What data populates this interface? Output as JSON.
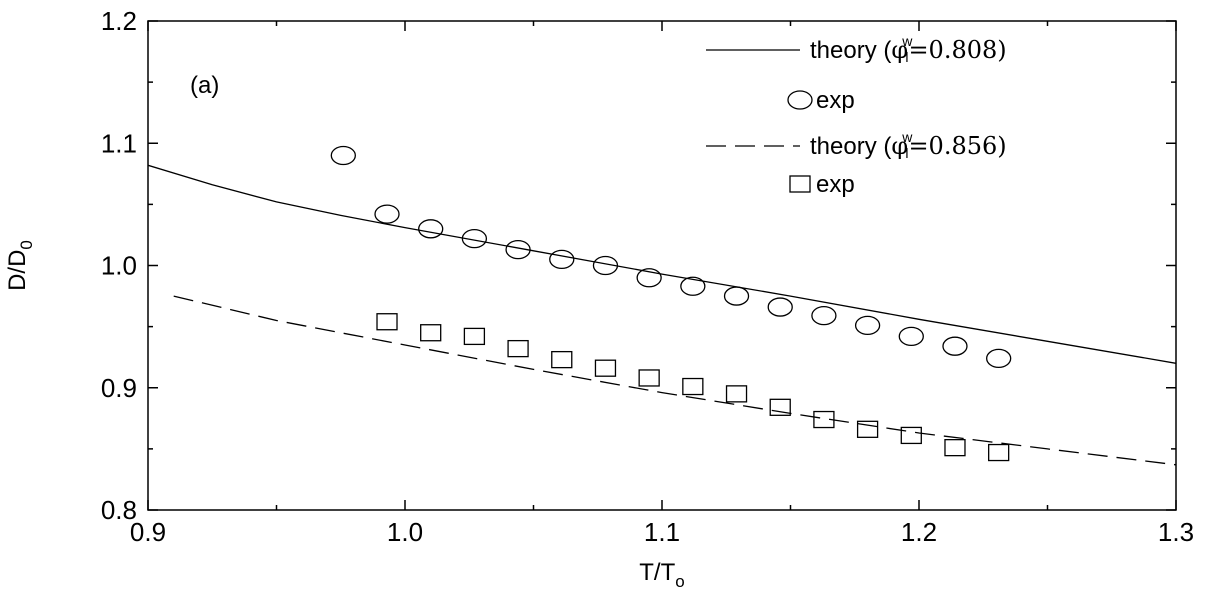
{
  "chart_data": {
    "type": "line",
    "panel_label": "(a)",
    "xlabel": {
      "main": "T/T",
      "sub": "o"
    },
    "ylabel": {
      "main": "D/D",
      "sub": "0"
    },
    "xlim": [
      0.9,
      1.3
    ],
    "ylim": [
      0.8,
      1.2
    ],
    "x_ticks": [
      0.9,
      1.0,
      1.1,
      1.2,
      1.3
    ],
    "x_tick_labels": [
      "0.9",
      "1.0",
      "1.1",
      "1.2",
      "1.3"
    ],
    "y_ticks": [
      0.8,
      0.9,
      1.0,
      1.1,
      1.2
    ],
    "y_tick_labels": [
      "0.8",
      "0.9",
      "1.0",
      "1.1",
      "1.2"
    ],
    "grid": false,
    "legend_position": "top-right",
    "series": [
      {
        "kind": "line",
        "style": "solid",
        "legend": {
          "prefix": "theory (",
          "symbol": "φ",
          "sup": "w",
          "sub": "l",
          "suffix": "=0.808)"
        },
        "points": [
          [
            0.9,
            1.082
          ],
          [
            0.925,
            1.066
          ],
          [
            0.95,
            1.052
          ],
          [
            0.975,
            1.041
          ],
          [
            1.0,
            1.031
          ],
          [
            1.05,
            1.012
          ],
          [
            1.1,
            0.993
          ],
          [
            1.15,
            0.975
          ],
          [
            1.2,
            0.956
          ],
          [
            1.25,
            0.938
          ],
          [
            1.3,
            0.92
          ]
        ]
      },
      {
        "kind": "scatter",
        "marker": "circle",
        "legend": {
          "text": "exp"
        },
        "points": [
          [
            0.976,
            1.09
          ],
          [
            0.993,
            1.042
          ],
          [
            1.01,
            1.03
          ],
          [
            1.027,
            1.022
          ],
          [
            1.044,
            1.013
          ],
          [
            1.061,
            1.005
          ],
          [
            1.078,
            1.0
          ],
          [
            1.095,
            0.99
          ],
          [
            1.112,
            0.983
          ],
          [
            1.129,
            0.975
          ],
          [
            1.146,
            0.966
          ],
          [
            1.163,
            0.959
          ],
          [
            1.18,
            0.951
          ],
          [
            1.197,
            0.942
          ],
          [
            1.214,
            0.934
          ],
          [
            1.231,
            0.924
          ]
        ]
      },
      {
        "kind": "line",
        "style": "dashed",
        "legend": {
          "prefix": "theory (",
          "symbol": "φ",
          "sup": "w",
          "sub": "l",
          "suffix": "=0.856)"
        },
        "points": [
          [
            0.91,
            0.975
          ],
          [
            0.95,
            0.955
          ],
          [
            1.0,
            0.935
          ],
          [
            1.05,
            0.915
          ],
          [
            1.1,
            0.896
          ],
          [
            1.15,
            0.879
          ],
          [
            1.2,
            0.863
          ],
          [
            1.25,
            0.85
          ],
          [
            1.3,
            0.837
          ]
        ]
      },
      {
        "kind": "scatter",
        "marker": "square",
        "legend": {
          "text": "exp"
        },
        "points": [
          [
            0.993,
            0.954
          ],
          [
            1.01,
            0.945
          ],
          [
            1.027,
            0.942
          ],
          [
            1.044,
            0.932
          ],
          [
            1.061,
            0.923
          ],
          [
            1.078,
            0.916
          ],
          [
            1.095,
            0.908
          ],
          [
            1.112,
            0.901
          ],
          [
            1.129,
            0.895
          ],
          [
            1.146,
            0.884
          ],
          [
            1.163,
            0.874
          ],
          [
            1.18,
            0.866
          ],
          [
            1.197,
            0.861
          ],
          [
            1.214,
            0.851
          ],
          [
            1.231,
            0.847
          ]
        ]
      }
    ]
  }
}
